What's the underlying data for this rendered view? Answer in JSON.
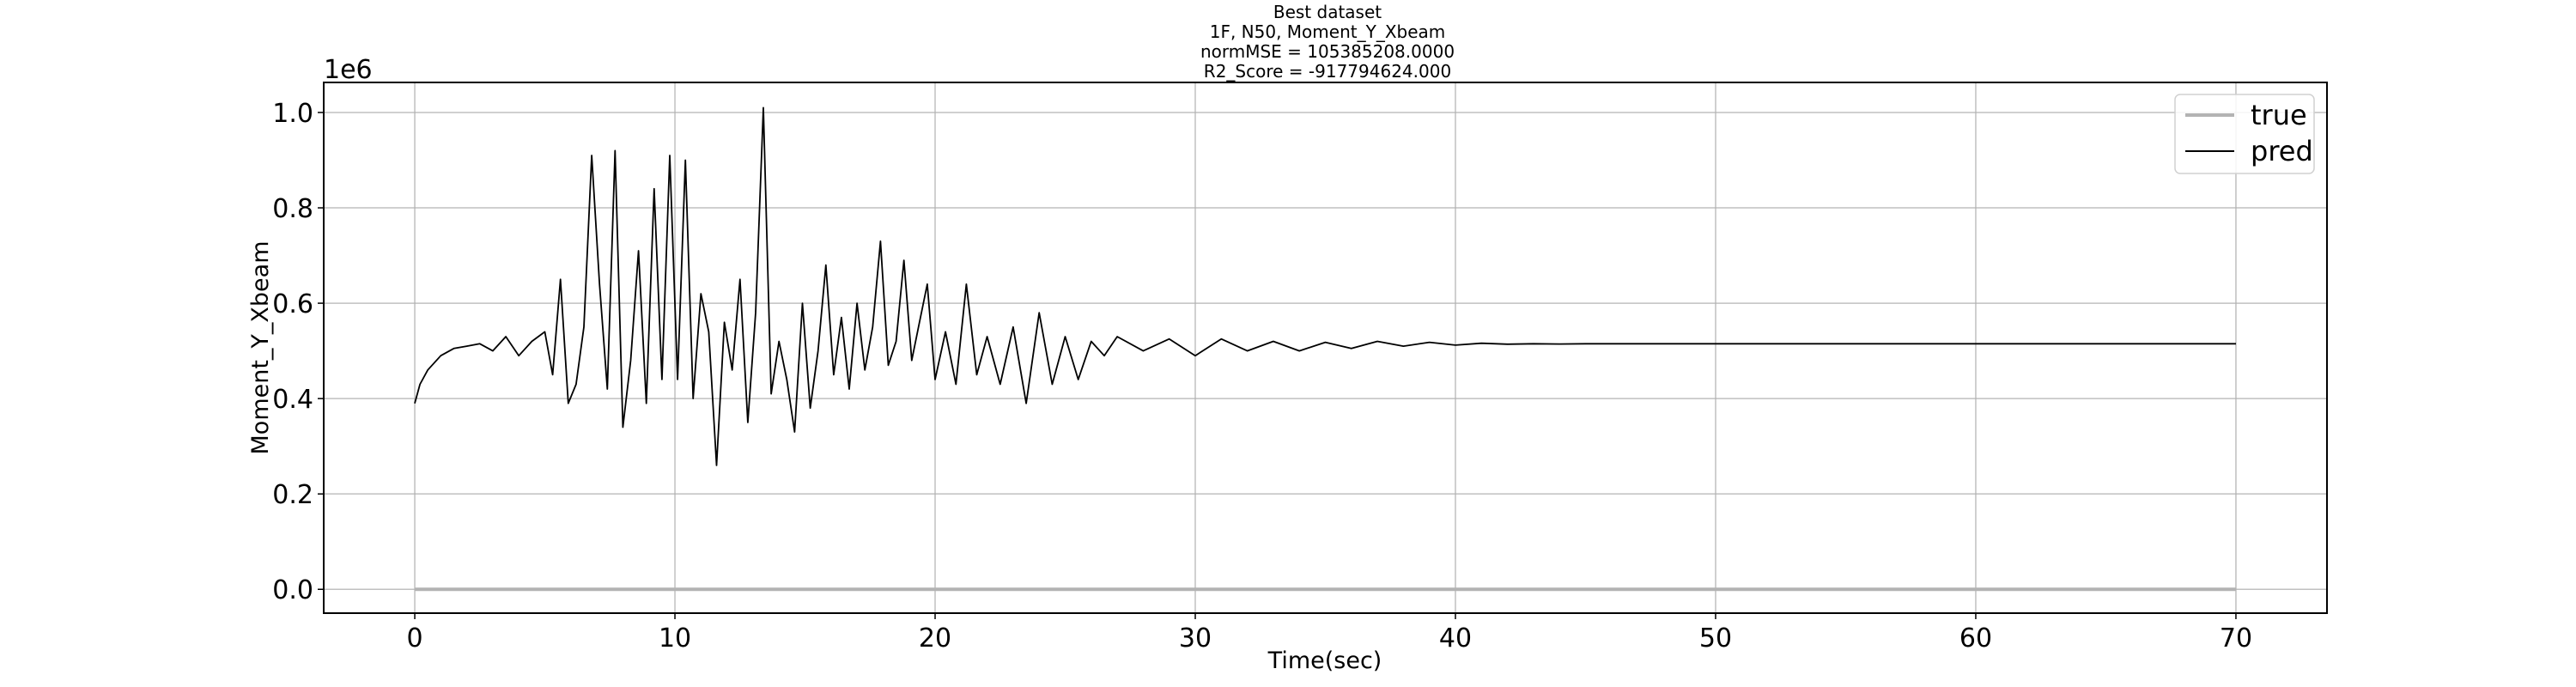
{
  "chart_data": {
    "type": "line",
    "title_lines": [
      "Best dataset",
      "1F, N50, Moment_Y_Xbeam",
      "normMSE = 105385208.0000",
      "R2_Score = -917794624.000"
    ],
    "xlabel": "Time(sec)",
    "ylabel": "Moment_Y_Xbeam",
    "y_scale_label": "1e6",
    "xlim": [
      -3.5,
      73.5
    ],
    "ylim": [
      -0.05,
      1.063
    ],
    "xticks": [
      0,
      10,
      20,
      30,
      40,
      50,
      60,
      70
    ],
    "yticks": [
      0.0,
      0.2,
      0.4,
      0.6,
      0.8,
      1.0
    ],
    "ytick_labels": [
      "0.0",
      "0.2",
      "0.4",
      "0.6",
      "0.8",
      "1.0"
    ],
    "grid": true,
    "legend_position": "top-right",
    "series": [
      {
        "name": "true",
        "color": "#b3b3b3",
        "x": [
          0,
          70
        ],
        "y": [
          0.0,
          0.0
        ]
      },
      {
        "name": "pred",
        "color": "#000000",
        "x": [
          0,
          0.2,
          0.5,
          1.0,
          1.5,
          2.0,
          2.5,
          3.0,
          3.5,
          4.0,
          4.5,
          5.0,
          5.3,
          5.6,
          5.9,
          6.2,
          6.5,
          6.8,
          7.1,
          7.4,
          7.7,
          8.0,
          8.3,
          8.6,
          8.9,
          9.2,
          9.5,
          9.8,
          10.1,
          10.4,
          10.7,
          11.0,
          11.3,
          11.6,
          11.9,
          12.2,
          12.5,
          12.8,
          13.1,
          13.4,
          13.7,
          14.0,
          14.3,
          14.6,
          14.9,
          15.2,
          15.5,
          15.8,
          16.1,
          16.4,
          16.7,
          17.0,
          17.3,
          17.6,
          17.9,
          18.2,
          18.5,
          18.8,
          19.1,
          19.4,
          19.7,
          20.0,
          20.4,
          20.8,
          21.2,
          21.6,
          22.0,
          22.5,
          23.0,
          23.5,
          24.0,
          24.5,
          25.0,
          25.5,
          26.0,
          26.5,
          27.0,
          28.0,
          29.0,
          30.0,
          31.0,
          32.0,
          33.0,
          34.0,
          35.0,
          36.0,
          37.0,
          38.0,
          39.0,
          40.0,
          41.0,
          42.0,
          43.0,
          44.0,
          45.0,
          50.0,
          60.0,
          70.0
        ],
        "y": [
          0.39,
          0.43,
          0.46,
          0.49,
          0.505,
          0.51,
          0.515,
          0.5,
          0.53,
          0.49,
          0.52,
          0.54,
          0.45,
          0.65,
          0.39,
          0.43,
          0.55,
          0.91,
          0.64,
          0.42,
          0.92,
          0.34,
          0.48,
          0.71,
          0.39,
          0.84,
          0.44,
          0.91,
          0.44,
          0.9,
          0.4,
          0.62,
          0.54,
          0.26,
          0.56,
          0.46,
          0.65,
          0.35,
          0.58,
          1.01,
          0.41,
          0.52,
          0.44,
          0.33,
          0.6,
          0.38,
          0.5,
          0.68,
          0.45,
          0.57,
          0.42,
          0.6,
          0.46,
          0.55,
          0.73,
          0.47,
          0.52,
          0.69,
          0.48,
          0.56,
          0.64,
          0.44,
          0.54,
          0.43,
          0.64,
          0.45,
          0.53,
          0.43,
          0.55,
          0.39,
          0.58,
          0.43,
          0.53,
          0.44,
          0.52,
          0.49,
          0.53,
          0.5,
          0.525,
          0.49,
          0.525,
          0.5,
          0.52,
          0.5,
          0.518,
          0.505,
          0.52,
          0.51,
          0.518,
          0.512,
          0.516,
          0.514,
          0.515,
          0.5145,
          0.515,
          0.515,
          0.515,
          0.515
        ]
      }
    ]
  }
}
